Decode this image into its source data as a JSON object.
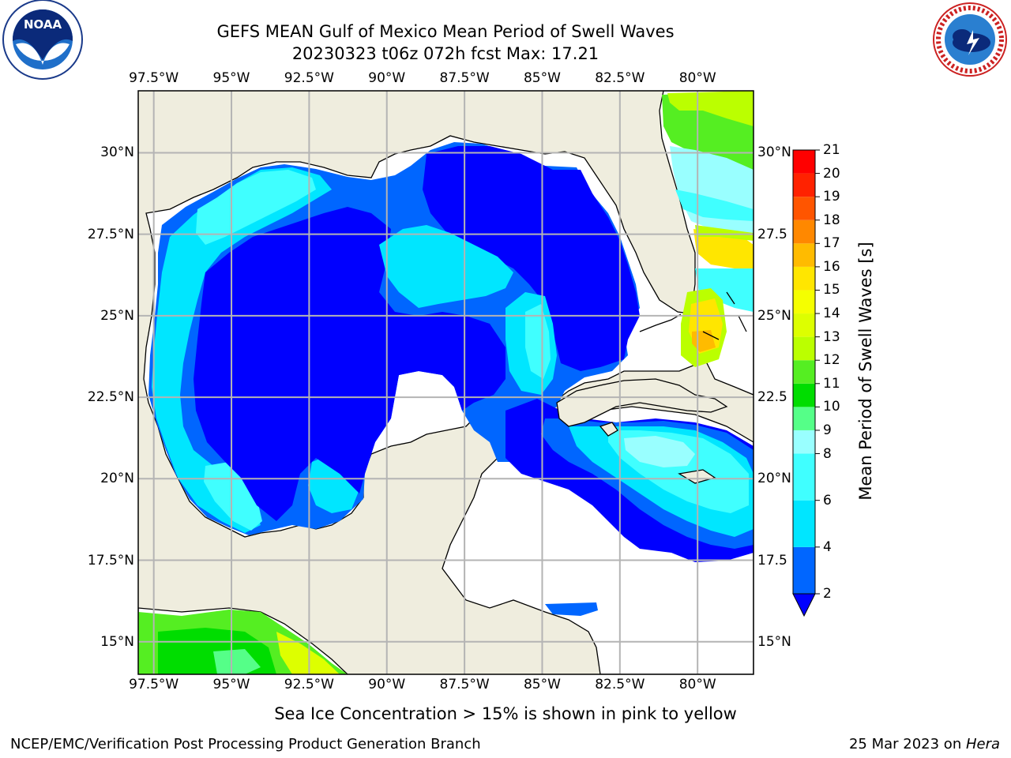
{
  "header": {
    "title_line1": "GEFS MEAN Gulf of Mexico Mean Period of Swell Waves",
    "title_line2": "20230323 t06z 072h fcst   Max: 17.21"
  },
  "logos": {
    "left": {
      "name": "noaa-logo-icon",
      "text": "NOAA",
      "ring_text": "NATIONAL OCEANIC AND ATMOSPHERIC ADMINISTRATION · U.S. DEPARTMENT OF COMMERCE"
    },
    "right": {
      "name": "nws-logo-icon",
      "ring_text": "NATIONAL WEATHER SERVICE"
    }
  },
  "map": {
    "lon_ticks": [
      "97.5°W",
      "95°W",
      "92.5°W",
      "90°W",
      "87.5°W",
      "85°W",
      "82.5°W",
      "80°W"
    ],
    "lat_ticks_left": [
      "30°N",
      "27.5°N",
      "25°N",
      "22.5°N",
      "20°N",
      "17.5°N",
      "15°N"
    ],
    "lat_ticks_right": [
      "30°N",
      "27.5",
      "25°N",
      "22.5",
      "20°N",
      "17.5",
      "15°N"
    ],
    "lon_range": [
      -98,
      -78.2
    ],
    "lat_range": [
      14,
      31.9
    ],
    "land_color": "#efedde",
    "ocean_nodata_color": "#ffffff",
    "grid_color": "#b4b4b4"
  },
  "colorbar": {
    "label": "Mean Period of Swell Waves [s]",
    "ticks": [
      "21",
      "20",
      "19",
      "18",
      "17",
      "16",
      "15",
      "14",
      "13",
      "12",
      "11",
      "10",
      "9",
      "8",
      "6",
      "4",
      "2"
    ],
    "bands": [
      {
        "from": 0,
        "to": 2,
        "color": "#0000ff"
      },
      {
        "from": 2,
        "to": 4,
        "color": "#0066ff"
      },
      {
        "from": 4,
        "to": 6,
        "color": "#00e6ff"
      },
      {
        "from": 6,
        "to": 8,
        "color": "#40ffff"
      },
      {
        "from": 8,
        "to": 9,
        "color": "#99ffff"
      },
      {
        "from": 9,
        "to": 10,
        "color": "#55ff88"
      },
      {
        "from": 10,
        "to": 11,
        "color": "#00dd00"
      },
      {
        "from": 11,
        "to": 12,
        "color": "#55ee22"
      },
      {
        "from": 12,
        "to": 13,
        "color": "#bbff00"
      },
      {
        "from": 13,
        "to": 14,
        "color": "#ddff00"
      },
      {
        "from": 14,
        "to": 15,
        "color": "#f5ff00"
      },
      {
        "from": 15,
        "to": 16,
        "color": "#ffe600"
      },
      {
        "from": 16,
        "to": 17,
        "color": "#ffbb00"
      },
      {
        "from": 17,
        "to": 18,
        "color": "#ff8800"
      },
      {
        "from": 18,
        "to": 19,
        "color": "#ff5500"
      },
      {
        "from": 19,
        "to": 20,
        "color": "#ff2200"
      },
      {
        "from": 20,
        "to": 21,
        "color": "#ff0000"
      }
    ]
  },
  "footer": {
    "note": "Sea Ice Concentration > 15% is shown in pink to yellow",
    "credit": "NCEP/EMC/Verification Post Processing Product Generation Branch",
    "date": "25 Mar 2023 on ",
    "machine": "Hera"
  }
}
